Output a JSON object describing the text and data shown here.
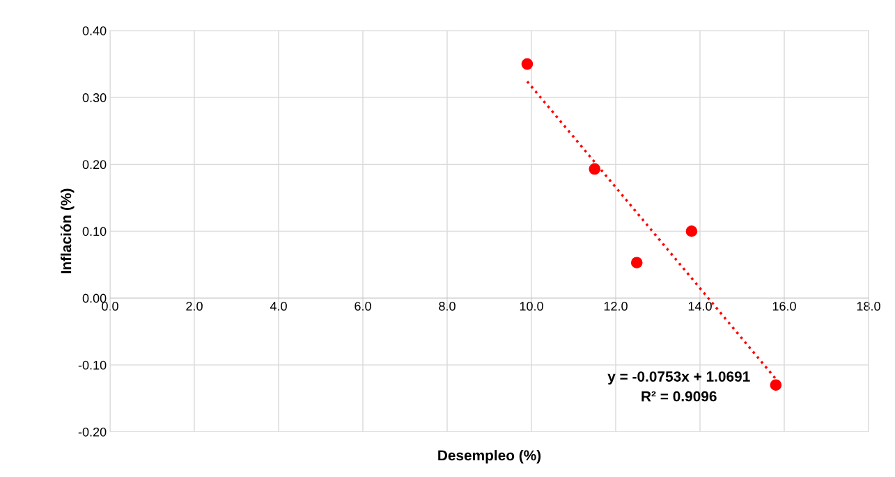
{
  "chart_data": {
    "type": "scatter",
    "xlabel": "Desempleo (%)",
    "ylabel": "Inflación (%)",
    "xlim": [
      0,
      18
    ],
    "ylim": [
      -0.2,
      0.4
    ],
    "xticks": [
      {
        "value": 0,
        "label": "0.0"
      },
      {
        "value": 2,
        "label": "2.0"
      },
      {
        "value": 4,
        "label": "4.0"
      },
      {
        "value": 6,
        "label": "6.0"
      },
      {
        "value": 8,
        "label": "8.0"
      },
      {
        "value": 10,
        "label": "10.0"
      },
      {
        "value": 12,
        "label": "12.0"
      },
      {
        "value": 14,
        "label": "14.0"
      },
      {
        "value": 16,
        "label": "16.0"
      },
      {
        "value": 18,
        "label": "18.0"
      }
    ],
    "yticks": [
      {
        "value": -0.2,
        "label": "-0.20"
      },
      {
        "value": -0.1,
        "label": "-0.10"
      },
      {
        "value": 0,
        "label": "0.00"
      },
      {
        "value": 0.1,
        "label": "0.10"
      },
      {
        "value": 0.2,
        "label": "0.20"
      },
      {
        "value": 0.3,
        "label": "0.30"
      },
      {
        "value": 0.4,
        "label": "0.40"
      }
    ],
    "grid": true,
    "marker": "circle",
    "series": [
      {
        "color": "#ff0000",
        "x": [
          9.9,
          11.5,
          12.5,
          13.8,
          15.8
        ],
        "values": [
          0.35,
          0.193,
          0.053,
          0.1,
          -0.13
        ]
      },
      {
        "type": "line",
        "color": "#ff0000",
        "line_style": "dotted",
        "marker": "none",
        "x": [
          9.9,
          15.8
        ],
        "values": [
          0.324,
          -0.121
        ]
      }
    ],
    "annotations": [
      "y = -0.0753x + 1.0691\nR² = 0.9096"
    ]
  }
}
